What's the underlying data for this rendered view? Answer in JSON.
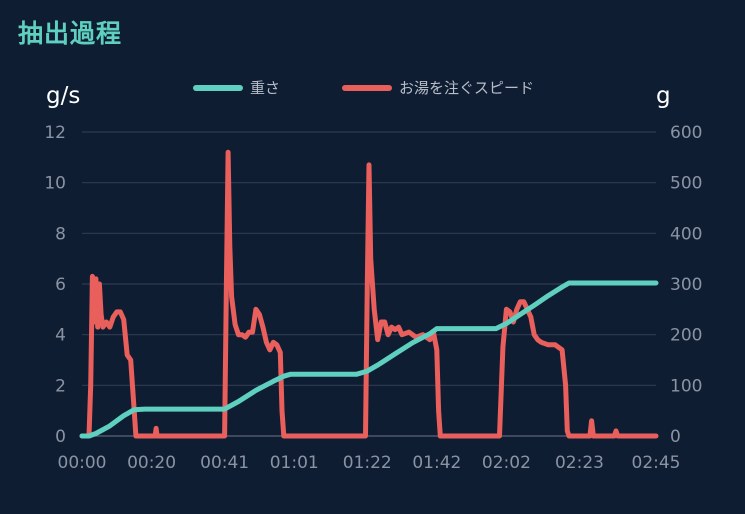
{
  "page": {
    "title": "抽出過程"
  },
  "colors": {
    "background": "#0f1d33",
    "weight": "#5fd0bf",
    "pour_speed": "#e85f5c",
    "grid": "#2f3b52",
    "tick": "#8a93a3"
  },
  "chart_data": {
    "type": "line",
    "title": "",
    "xlabel": "",
    "ylabel_left": "g/s",
    "ylabel_right": "g",
    "x_unit": "seconds",
    "xlim": [
      0,
      165
    ],
    "ylim_left": [
      0,
      12
    ],
    "ylim_right": [
      0,
      600
    ],
    "grid": true,
    "legend_position": "top",
    "x_ticks": [
      {
        "x": 0,
        "label": "00:00"
      },
      {
        "x": 20,
        "label": "00:20"
      },
      {
        "x": 41,
        "label": "00:41"
      },
      {
        "x": 61,
        "label": "01:01"
      },
      {
        "x": 82,
        "label": "01:22"
      },
      {
        "x": 102,
        "label": "01:42"
      },
      {
        "x": 122,
        "label": "02:02"
      },
      {
        "x": 143,
        "label": "02:23"
      },
      {
        "x": 165,
        "label": "02:45"
      }
    ],
    "y_ticks_left": [
      {
        "v": 0,
        "label": "0"
      },
      {
        "v": 2,
        "label": "2"
      },
      {
        "v": 4,
        "label": "4"
      },
      {
        "v": 6,
        "label": "6"
      },
      {
        "v": 8,
        "label": "8"
      },
      {
        "v": 10,
        "label": "10"
      },
      {
        "v": 12,
        "label": "12"
      }
    ],
    "y_ticks_right": [
      {
        "v": 0,
        "label": "0"
      },
      {
        "v": 100,
        "label": "100"
      },
      {
        "v": 200,
        "label": "200"
      },
      {
        "v": 300,
        "label": "300"
      },
      {
        "v": 400,
        "label": "400"
      },
      {
        "v": 500,
        "label": "500"
      },
      {
        "v": 600,
        "label": "600"
      }
    ],
    "series": [
      {
        "name": "重さ",
        "axis": "right",
        "color": "#5fd0bf",
        "points": [
          [
            0,
            0
          ],
          [
            2,
            0
          ],
          [
            4,
            5
          ],
          [
            8,
            20
          ],
          [
            12,
            40
          ],
          [
            15,
            52
          ],
          [
            18,
            53
          ],
          [
            41,
            53
          ],
          [
            45,
            68
          ],
          [
            50,
            90
          ],
          [
            55,
            108
          ],
          [
            58,
            118
          ],
          [
            60,
            122
          ],
          [
            79,
            122
          ],
          [
            82,
            128
          ],
          [
            85,
            140
          ],
          [
            90,
            162
          ],
          [
            95,
            184
          ],
          [
            100,
            202
          ],
          [
            102,
            212
          ],
          [
            119,
            212
          ],
          [
            122,
            222
          ],
          [
            126,
            240
          ],
          [
            130,
            258
          ],
          [
            134,
            277
          ],
          [
            138,
            294
          ],
          [
            140,
            302
          ],
          [
            165,
            302
          ]
        ]
      },
      {
        "name": "お湯を注ぐスピード",
        "axis": "left",
        "color": "#e85f5c",
        "points": [
          [
            0,
            0
          ],
          [
            2,
            0
          ],
          [
            2.5,
            2.0
          ],
          [
            3.0,
            6.3
          ],
          [
            3.5,
            4.5
          ],
          [
            4.0,
            6.2
          ],
          [
            4.5,
            4.3
          ],
          [
            5.0,
            6.0
          ],
          [
            5.5,
            4.8
          ],
          [
            6.0,
            4.3
          ],
          [
            7.0,
            4.5
          ],
          [
            8.0,
            4.3
          ],
          [
            9.0,
            4.7
          ],
          [
            10.0,
            4.9
          ],
          [
            11.0,
            4.9
          ],
          [
            12.0,
            4.6
          ],
          [
            13.0,
            3.2
          ],
          [
            14.0,
            3.0
          ],
          [
            15.0,
            1.0
          ],
          [
            15.5,
            0
          ],
          [
            21.0,
            0
          ],
          [
            21.3,
            0.3
          ],
          [
            21.6,
            0
          ],
          [
            41.0,
            0
          ],
          [
            41.5,
            6.0
          ],
          [
            42.0,
            11.2
          ],
          [
            42.5,
            7.5
          ],
          [
            43.0,
            5.5
          ],
          [
            44.0,
            4.4
          ],
          [
            45.0,
            4.0
          ],
          [
            46.0,
            4.0
          ],
          [
            47.0,
            3.9
          ],
          [
            48.0,
            4.1
          ],
          [
            49.0,
            4.1
          ],
          [
            50.0,
            5.0
          ],
          [
            51.0,
            4.8
          ],
          [
            52.0,
            4.3
          ],
          [
            53.0,
            3.7
          ],
          [
            54.0,
            3.4
          ],
          [
            55.0,
            3.7
          ],
          [
            56.0,
            3.6
          ],
          [
            57.0,
            3.3
          ],
          [
            57.5,
            1.0
          ],
          [
            58.0,
            0
          ],
          [
            81.5,
            0
          ],
          [
            82.0,
            6.0
          ],
          [
            82.5,
            10.7
          ],
          [
            83.0,
            7.0
          ],
          [
            84.0,
            5.0
          ],
          [
            85.0,
            3.8
          ],
          [
            86.0,
            4.5
          ],
          [
            87.0,
            4.5
          ],
          [
            88.0,
            4.0
          ],
          [
            89.0,
            4.3
          ],
          [
            90.0,
            4.2
          ],
          [
            91.0,
            4.3
          ],
          [
            92.0,
            4.0
          ],
          [
            94.0,
            4.1
          ],
          [
            96.0,
            3.9
          ],
          [
            98.0,
            4.0
          ],
          [
            100.0,
            3.8
          ],
          [
            101.0,
            4.1
          ],
          [
            102.0,
            3.4
          ],
          [
            102.5,
            1.0
          ],
          [
            103.0,
            0
          ],
          [
            120.0,
            0
          ],
          [
            121.0,
            3.5
          ],
          [
            122.0,
            5.0
          ],
          [
            123.0,
            4.9
          ],
          [
            124.0,
            4.5
          ],
          [
            125.0,
            5.0
          ],
          [
            126.0,
            5.3
          ],
          [
            127.0,
            5.3
          ],
          [
            128.0,
            5.0
          ],
          [
            129.0,
            4.7
          ],
          [
            130.0,
            4.0
          ],
          [
            131.0,
            3.8
          ],
          [
            132.0,
            3.7
          ],
          [
            134.0,
            3.6
          ],
          [
            136.0,
            3.6
          ],
          [
            138.0,
            3.4
          ],
          [
            139.0,
            2.0
          ],
          [
            139.5,
            0.2
          ],
          [
            140.0,
            0
          ],
          [
            146.0,
            0
          ],
          [
            146.5,
            0.6
          ],
          [
            147.0,
            0
          ],
          [
            153.0,
            0
          ],
          [
            153.5,
            0.2
          ],
          [
            154.0,
            0
          ],
          [
            165.0,
            0
          ]
        ]
      }
    ]
  }
}
